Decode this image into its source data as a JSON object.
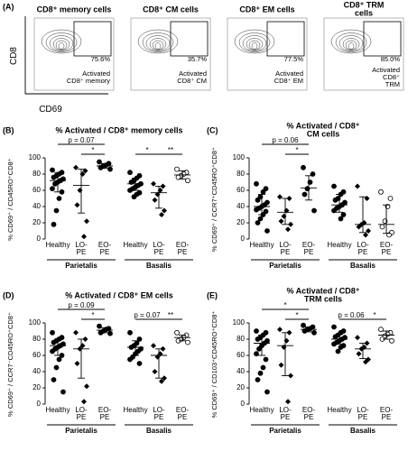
{
  "figure": {
    "panel_a": {
      "label": "(A)",
      "x_label": "CD69",
      "y_label": "CD8",
      "plots": [
        {
          "title": "CD8⁺ memory cells",
          "value": 75.6,
          "value_label": "75.6%",
          "gate": "Activated\nCD8⁺ memory"
        },
        {
          "title": "CD8⁺ CM cells",
          "value": 35.7,
          "value_label": "35.7%",
          "gate": "Activated\nCD8⁺ CM"
        },
        {
          "title": "CD8⁺ EM cells",
          "value": 77.5,
          "value_label": "77.5%",
          "gate": "Activated\nCD8⁺ EM"
        },
        {
          "title": "CD8⁺ TRM cells",
          "value": 85.0,
          "value_label": "85.0%",
          "gate": "Activated\nCD8⁺ TRM"
        }
      ]
    }
  },
  "chart_data": [
    {
      "type": "dot",
      "panel": "(B)",
      "title": "% Activated / CD8⁺ memory cells",
      "y_label": "% CD69⁺ / CD45RO⁺CD8⁺",
      "categories": [
        "Healthy",
        "LO-\nPE",
        "EO-\nPE",
        "Healthy",
        "LO-\nPE",
        "EO-\nPE"
      ],
      "groups": [
        "Parietalis",
        "Basalis"
      ],
      "values": [
        [
          85,
          82,
          80,
          78,
          76,
          74,
          72,
          70,
          68,
          62,
          58,
          50,
          35,
          18
        ],
        [
          88,
          84,
          80,
          60,
          42,
          22,
          3
        ],
        [
          95,
          93,
          91,
          90,
          88,
          86
        ],
        [
          82,
          78,
          75,
          72,
          70,
          68,
          66,
          64,
          62,
          60,
          57,
          55,
          52
        ],
        [
          68,
          65,
          60,
          55,
          48,
          35,
          30
        ],
        [
          86,
          82,
          80,
          78,
          76,
          72
        ]
      ],
      "centers": [
        72,
        66,
        90,
        68,
        57,
        79
      ],
      "lower": [
        58,
        32,
        87,
        60,
        38,
        74
      ],
      "upper": [
        82,
        86,
        93,
        75,
        65,
        84
      ],
      "annotations": [
        "p = 0.07",
        "*",
        "*",
        "**"
      ],
      "ylim": [
        0,
        100
      ],
      "yticks": [
        0,
        20,
        40,
        60,
        80,
        100
      ]
    },
    {
      "type": "dot",
      "panel": "(C)",
      "title": "% Activated / CD8⁺ CM cells",
      "y_label": "% CD69⁺ / CCR7⁺CD45RO⁺CD8⁺",
      "categories": [
        "Healthy",
        "LO-\nPE",
        "EO-\nPE",
        "Healthy",
        "LO-\nPE",
        "EO-\nPE"
      ],
      "groups": [
        "Parietalis",
        "Basalis"
      ],
      "values": [
        [
          68,
          62,
          58,
          52,
          48,
          45,
          42,
          40,
          38,
          36,
          34,
          30,
          25,
          20,
          10
        ],
        [
          52,
          50,
          35,
          28,
          22,
          18,
          12
        ],
        [
          88,
          80,
          70,
          62,
          55,
          35
        ],
        [
          65,
          58,
          55,
          50,
          48,
          45,
          42,
          40,
          38,
          35,
          30,
          25
        ],
        [
          65,
          50,
          20,
          18,
          15,
          10,
          5
        ],
        [
          58,
          50,
          40,
          22,
          15,
          8,
          5
        ]
      ],
      "centers": [
        40,
        33,
        63,
        42,
        18,
        18
      ],
      "lower": [
        30,
        18,
        48,
        33,
        8,
        7
      ],
      "upper": [
        55,
        50,
        78,
        55,
        52,
        42
      ],
      "annotations": [
        "p = 0.06",
        "*"
      ],
      "ylim": [
        0,
        100
      ],
      "yticks": [
        0,
        20,
        40,
        60,
        80,
        100
      ]
    },
    {
      "type": "dot",
      "panel": "(D)",
      "title": "% Activated / CD8⁺ EM cells",
      "y_label": "% CD69⁺ / CCR7⁻CD45RO⁺CD8⁺",
      "categories": [
        "Healthy",
        "LO-\nPE",
        "EO-\nPE",
        "Healthy",
        "LO-\nPE",
        "EO-\nPE"
      ],
      "groups": [
        "Parietalis",
        "Basalis"
      ],
      "values": [
        [
          88,
          82,
          80,
          78,
          76,
          74,
          72,
          70,
          68,
          65,
          60,
          55,
          45,
          30,
          15
        ],
        [
          88,
          80,
          72,
          68,
          50,
          22,
          3
        ],
        [
          96,
          93,
          92,
          90,
          88,
          87
        ],
        [
          88,
          80,
          75,
          72,
          70,
          68,
          65,
          62,
          58,
          55,
          50
        ],
        [
          72,
          68,
          62,
          58,
          40,
          32,
          28
        ],
        [
          88,
          85,
          82,
          80,
          78,
          76
        ]
      ],
      "centers": [
        72,
        68,
        91,
        70,
        60,
        82
      ],
      "lower": [
        60,
        32,
        88,
        60,
        32,
        78
      ],
      "upper": [
        80,
        80,
        94,
        78,
        68,
        85
      ],
      "annotations": [
        "p = 0.09",
        "*",
        "p = 0.07",
        "**"
      ],
      "ylim": [
        0,
        100
      ],
      "yticks": [
        0,
        20,
        40,
        60,
        80,
        100
      ]
    },
    {
      "type": "dot",
      "panel": "(E)",
      "title": "% Activated / CD8⁺ TRM cells",
      "y_label": "% CD69⁺ / CD103⁺CD45RO⁺CD8⁺",
      "categories": [
        "Healthy",
        "LO-\nPE",
        "EO-\nPE",
        "Healthy",
        "LO-\nPE",
        "EO-\nPE"
      ],
      "groups": [
        "Parietalis",
        "Basalis"
      ],
      "values": [
        [
          90,
          88,
          85,
          82,
          80,
          78,
          75,
          72,
          68,
          62,
          55,
          45,
          38,
          30,
          15
        ],
        [
          92,
          88,
          78,
          70,
          48,
          35,
          3
        ],
        [
          97,
          95,
          93,
          92,
          90,
          88
        ],
        [
          95,
          90,
          88,
          85,
          83,
          82,
          80,
          78,
          76,
          74,
          72,
          70,
          65
        ],
        [
          82,
          75,
          70,
          68,
          62,
          55,
          52
        ],
        [
          92,
          88,
          86,
          84,
          80,
          78
        ]
      ],
      "centers": [
        75,
        72,
        92,
        80,
        68,
        85
      ],
      "lower": [
        60,
        35,
        89,
        74,
        56,
        80
      ],
      "upper": [
        85,
        88,
        95,
        86,
        75,
        90
      ],
      "annotations": [
        "*",
        "*",
        "p = 0.06",
        "*"
      ],
      "ylim": [
        0,
        100
      ],
      "yticks": [
        0,
        20,
        40,
        60,
        80,
        100
      ]
    }
  ]
}
